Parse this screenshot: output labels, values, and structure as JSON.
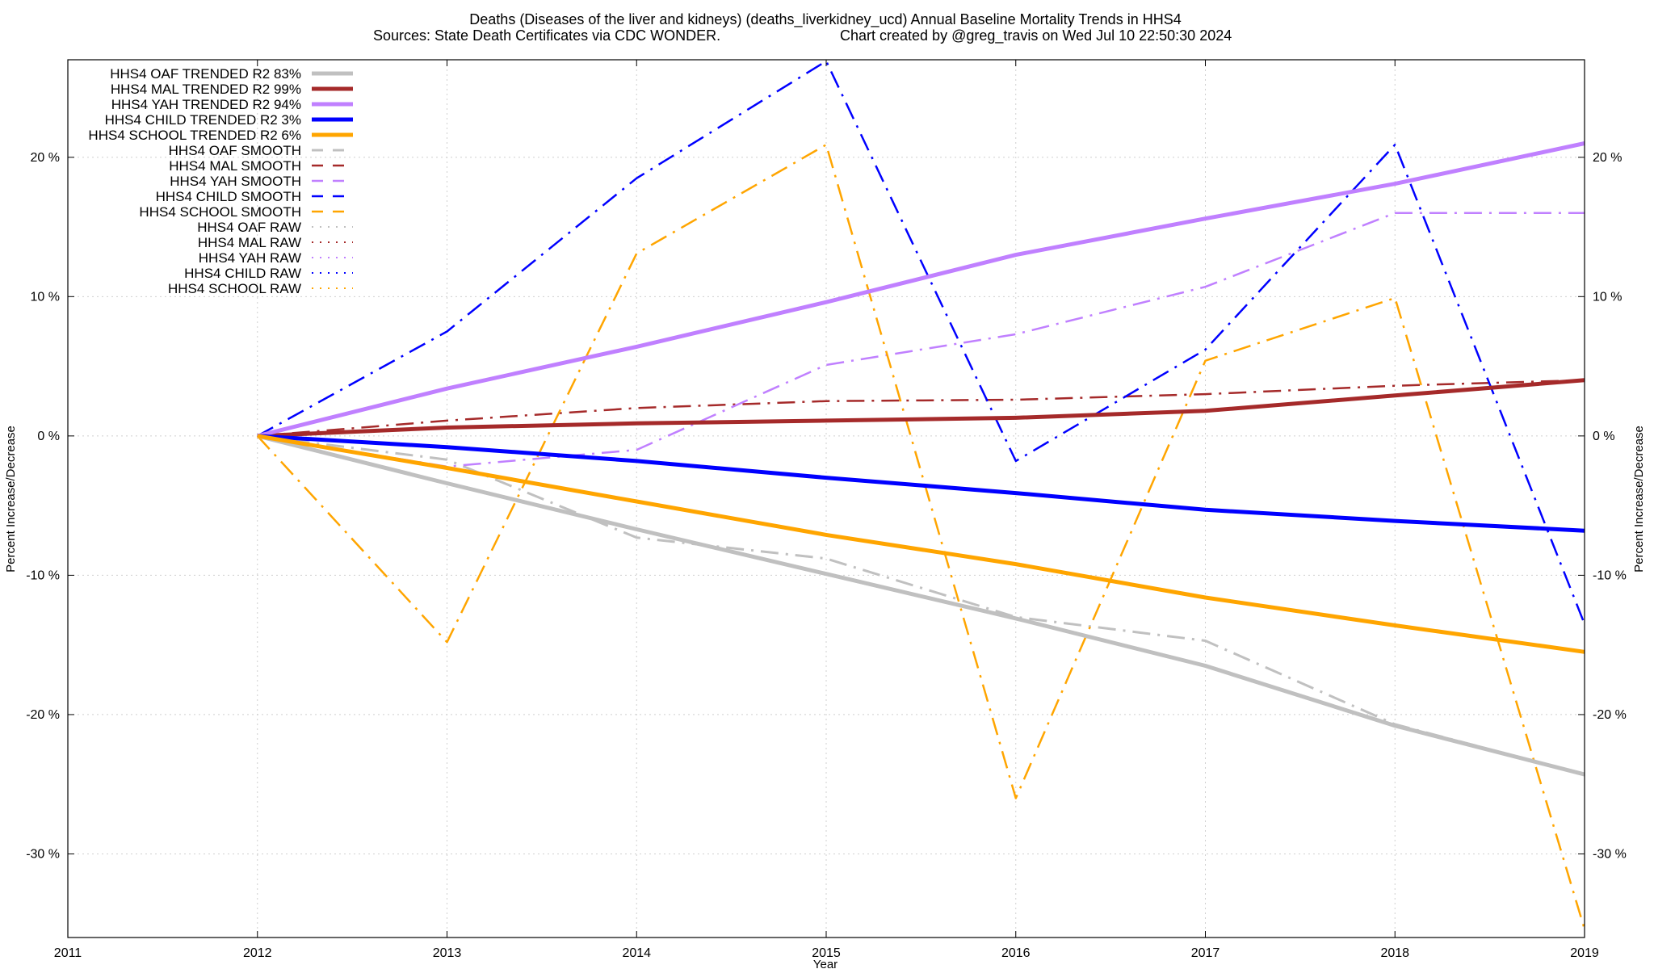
{
  "chart_data": {
    "type": "line",
    "title": "Deaths (Diseases of the liver and kidneys) (deaths_liverkidney_ucd)  Annual Baseline Mortality Trends in HHS4",
    "subtitle_left": "Sources: State Death Certificates via CDC WONDER.",
    "subtitle_right": "Chart created by @greg_travis on Wed Jul 10 22:50:30 2024",
    "xlabel": "Year",
    "ylabel": "Percent Increase/Decrease",
    "y2label": "Percent Increase/Decrease",
    "xlim": [
      2011,
      2019
    ],
    "ylim": [
      -36,
      27
    ],
    "x_ticks": [
      {
        "value": 2011,
        "label": "2011"
      },
      {
        "value": 2012,
        "label": "2012"
      },
      {
        "value": 2013,
        "label": "2013"
      },
      {
        "value": 2014,
        "label": "2014"
      },
      {
        "value": 2015,
        "label": "2015"
      },
      {
        "value": 2016,
        "label": "2016"
      },
      {
        "value": 2017,
        "label": "2017"
      },
      {
        "value": 2018,
        "label": "2018"
      },
      {
        "value": 2019,
        "label": "2019"
      }
    ],
    "y_ticks": [
      {
        "value": 20,
        "label": "20 %"
      },
      {
        "value": 10,
        "label": "10 %"
      },
      {
        "value": 0,
        "label": "0 %"
      },
      {
        "value": -10,
        "label": "-10 %"
      },
      {
        "value": -20,
        "label": "-20 %"
      },
      {
        "value": -30,
        "label": "-30 %"
      }
    ],
    "grid": true,
    "legend_position": "top-left",
    "series": [
      {
        "name": "HHS4 OAF TRENDED R2  83%",
        "color": "#c0c0c0",
        "style": "solid",
        "width": 5,
        "x": [
          2012,
          2013,
          2014,
          2015,
          2016,
          2017,
          2018,
          2019
        ],
        "y": [
          0,
          -3.4,
          -6.7,
          -9.9,
          -13.1,
          -16.5,
          -20.8,
          -24.3
        ]
      },
      {
        "name": "HHS4 MAL TRENDED R2  99%",
        "color": "#a52a2a",
        "style": "solid",
        "width": 5,
        "x": [
          2012,
          2013,
          2014,
          2015,
          2016,
          2017,
          2018,
          2019
        ],
        "y": [
          0,
          0.6,
          0.9,
          1.1,
          1.3,
          1.8,
          2.9,
          4.0
        ]
      },
      {
        "name": "HHS4 YAH TRENDED R2  94%",
        "color": "#c080ff",
        "style": "solid",
        "width": 5,
        "x": [
          2012,
          2013,
          2014,
          2015,
          2016,
          2017,
          2018,
          2019
        ],
        "y": [
          0,
          3.4,
          6.4,
          9.6,
          13.0,
          15.6,
          18.1,
          21.0
        ]
      },
      {
        "name": "HHS4 CHILD TRENDED R2   3%",
        "color": "#0000ff",
        "style": "solid",
        "width": 5,
        "x": [
          2012,
          2013,
          2014,
          2015,
          2016,
          2017,
          2018,
          2019
        ],
        "y": [
          0,
          -0.8,
          -1.8,
          -3.0,
          -4.1,
          -5.3,
          -6.1,
          -6.8
        ]
      },
      {
        "name": "HHS4 SCHOOL TRENDED R2   6%",
        "color": "#ffa500",
        "style": "solid",
        "width": 5,
        "x": [
          2012,
          2013,
          2014,
          2015,
          2016,
          2017,
          2018,
          2019
        ],
        "y": [
          0,
          -2.3,
          -4.7,
          -7.1,
          -9.2,
          -11.6,
          -13.6,
          -15.5
        ]
      },
      {
        "name": "HHS4 OAF SMOOTH",
        "color": "#c0c0c0",
        "style": "dashdot",
        "width": 3,
        "x": [
          2012,
          2013,
          2014,
          2015,
          2016,
          2017,
          2018,
          2019
        ],
        "y": [
          0,
          -1.7,
          -7.3,
          -8.8,
          -13.0,
          -14.7,
          -20.7,
          -24.3
        ]
      },
      {
        "name": "HHS4 MAL SMOOTH",
        "color": "#a52a2a",
        "style": "dashdot",
        "width": 2.5,
        "x": [
          2012,
          2013,
          2014,
          2015,
          2016,
          2017,
          2018,
          2019
        ],
        "y": [
          0,
          1.1,
          2.0,
          2.5,
          2.6,
          3.0,
          3.6,
          4.0
        ]
      },
      {
        "name": "HHS4 YAH SMOOTH",
        "color": "#c080ff",
        "style": "dashdot",
        "width": 2.5,
        "x": [
          2012,
          2013,
          2014,
          2015,
          2016,
          2017,
          2018,
          2019
        ],
        "y": [
          0,
          -2.2,
          -1.0,
          5.1,
          7.3,
          10.7,
          16.0,
          16.0
        ]
      },
      {
        "name": "HHS4 CHILD SMOOTH",
        "color": "#0000ff",
        "style": "dashdot",
        "width": 2.5,
        "x": [
          2012,
          2013,
          2014,
          2015,
          2016,
          2017,
          2018,
          2019
        ],
        "y": [
          0,
          7.5,
          18.5,
          26.9,
          -1.8,
          6.2,
          20.9,
          -13.5
        ]
      },
      {
        "name": "HHS4 SCHOOL SMOOTH",
        "color": "#ffa500",
        "style": "dashdot",
        "width": 2.5,
        "x": [
          2012,
          2013,
          2014,
          2015,
          2016,
          2017,
          2018,
          2019
        ],
        "y": [
          0,
          -14.8,
          13.1,
          20.9,
          -26.0,
          5.4,
          9.9,
          -35.4
        ]
      },
      {
        "name": "HHS4 OAF RAW",
        "color": "#c0c0c0",
        "style": "dotted",
        "width": 2,
        "x": [],
        "y": []
      },
      {
        "name": "HHS4 MAL RAW",
        "color": "#a52a2a",
        "style": "dotted",
        "width": 2,
        "x": [],
        "y": []
      },
      {
        "name": "HHS4 YAH RAW",
        "color": "#c080ff",
        "style": "dotted",
        "width": 2,
        "x": [],
        "y": []
      },
      {
        "name": "HHS4 CHILD RAW",
        "color": "#0000ff",
        "style": "dotted",
        "width": 2,
        "x": [],
        "y": []
      },
      {
        "name": "HHS4 SCHOOL RAW",
        "color": "#ffa500",
        "style": "dotted",
        "width": 2,
        "x": [],
        "y": []
      }
    ]
  }
}
